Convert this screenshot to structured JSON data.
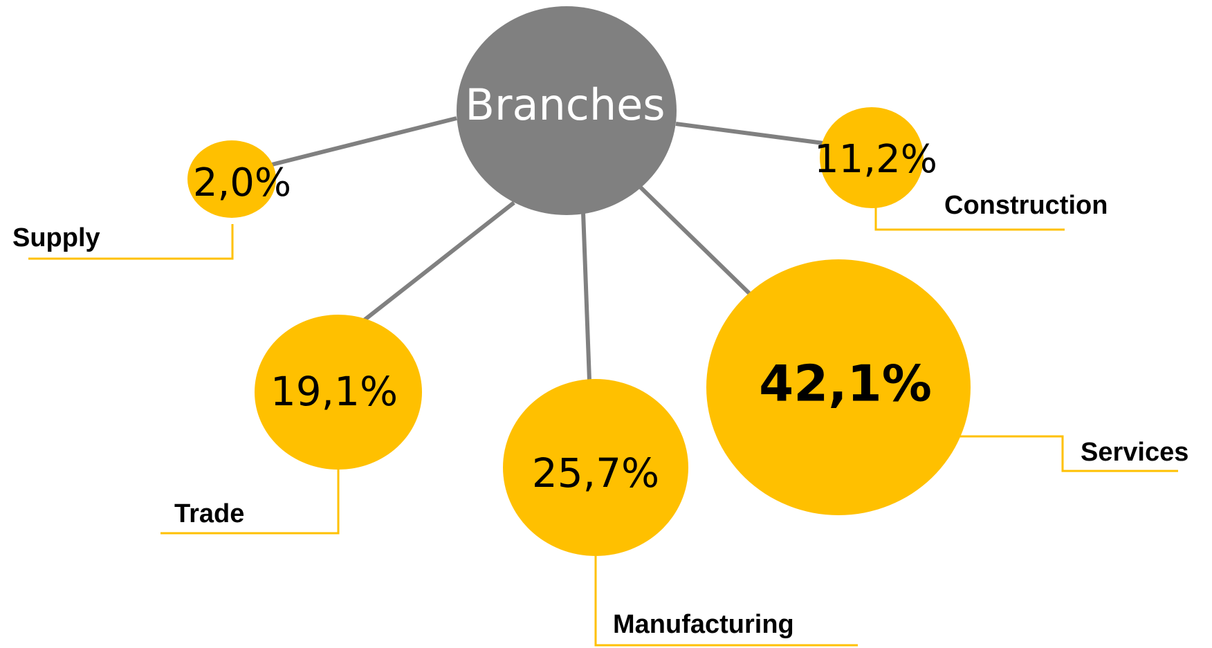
{
  "center": {
    "label": "Branches"
  },
  "nodes": [
    {
      "name": "Supply",
      "value": "2,0%"
    },
    {
      "name": "Construction",
      "value": "11,2%"
    },
    {
      "name": "Trade",
      "value": "19,1%"
    },
    {
      "name": "Manufacturing",
      "value": "25,7%"
    },
    {
      "name": "Services",
      "value": "42,1%"
    }
  ]
}
